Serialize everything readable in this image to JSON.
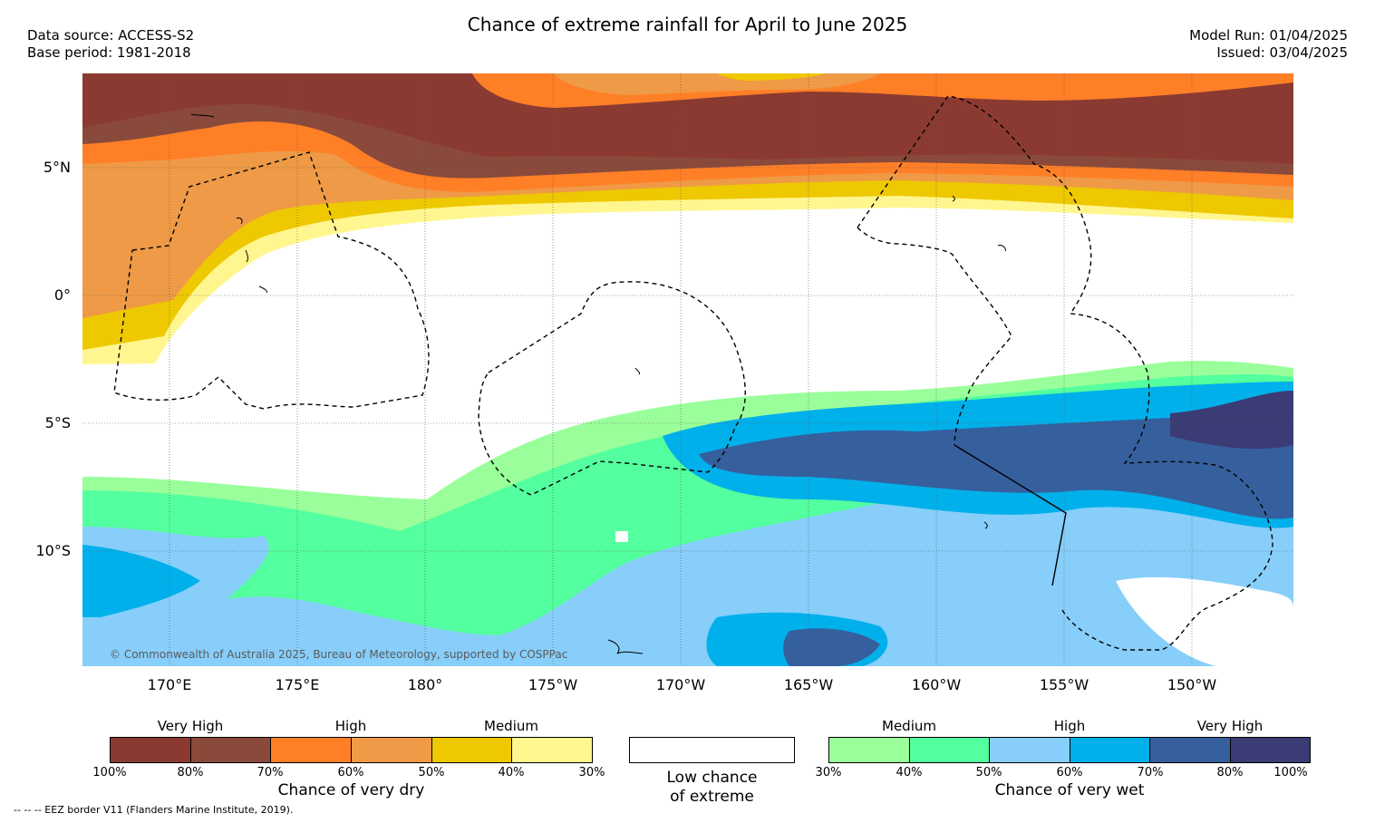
{
  "title": "Chance of extreme rainfall for April to June 2025",
  "meta_left": [
    "Data source: ACCESS-S2",
    "Base period: 1981-2018"
  ],
  "meta_right": [
    "Model Run: 01/04/2025",
    "Issued: 03/04/2025"
  ],
  "latitude_ticks": [
    "5°N",
    "0°",
    "5°S",
    "10°S"
  ],
  "longitude_ticks": [
    "170°E",
    "175°E",
    "180°",
    "175°W",
    "170°W",
    "165°W",
    "160°W",
    "155°W",
    "150°W"
  ],
  "map_credit": "© Commonwealth of Australia 2025, Bureau of Meteorology, supported by COSPPac",
  "colors": {
    "dry": [
      "#8b3a32",
      "#8a4a3b",
      "#ff7f27",
      "#ee9a46",
      "#eec800",
      "#fff68f"
    ],
    "wet": [
      "#9aff9a",
      "#54ff9f",
      "#87cefa",
      "#00b0eb",
      "#365f9d",
      "#3b3b75"
    ]
  },
  "dry_legend": {
    "categories": [
      "Very High",
      "High",
      "Medium"
    ],
    "ticks": [
      "100%",
      "80%",
      "70%",
      "60%",
      "50%",
      "40%",
      "30%"
    ],
    "title": "Chance of very dry"
  },
  "neutral_legend": {
    "title_line1": "Low chance",
    "title_line2": "of extreme"
  },
  "wet_legend": {
    "categories": [
      "Medium",
      "High",
      "Very High"
    ],
    "ticks": [
      "30%",
      "40%",
      "50%",
      "60%",
      "70%",
      "80%",
      "100%"
    ],
    "title": "Chance of very wet"
  },
  "footnote": "-- -- -- EEZ border V11 (Flanders Marine Institute, 2019)."
}
